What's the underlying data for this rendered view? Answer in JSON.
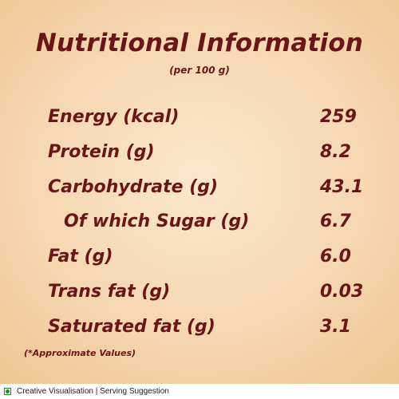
{
  "header": {
    "title": "Nutritional Information",
    "subtitle": "(per 100 g)"
  },
  "nutrients": [
    {
      "label": "Energy (kcal)",
      "value": "259"
    },
    {
      "label": "Protein (g)",
      "value": "8.2"
    },
    {
      "label": "Carbohydrate (g)",
      "value": "43.1"
    },
    {
      "label": "Of which Sugar (g)",
      "value": "6.7",
      "indent": true
    },
    {
      "label": "Fat (g)",
      "value": "6.0"
    },
    {
      "label": "Trans fat (g)",
      "value": "0.03"
    },
    {
      "label": "Saturated fat (g)",
      "value": "3.1"
    }
  ],
  "note": "(*Approximate Values)",
  "footer": {
    "icon": "veg-mark-icon",
    "text": "Creative Visualisation | Serving Suggestion"
  },
  "colors": {
    "text": "#6a1518",
    "veg_mark": "#1e8a2c"
  }
}
